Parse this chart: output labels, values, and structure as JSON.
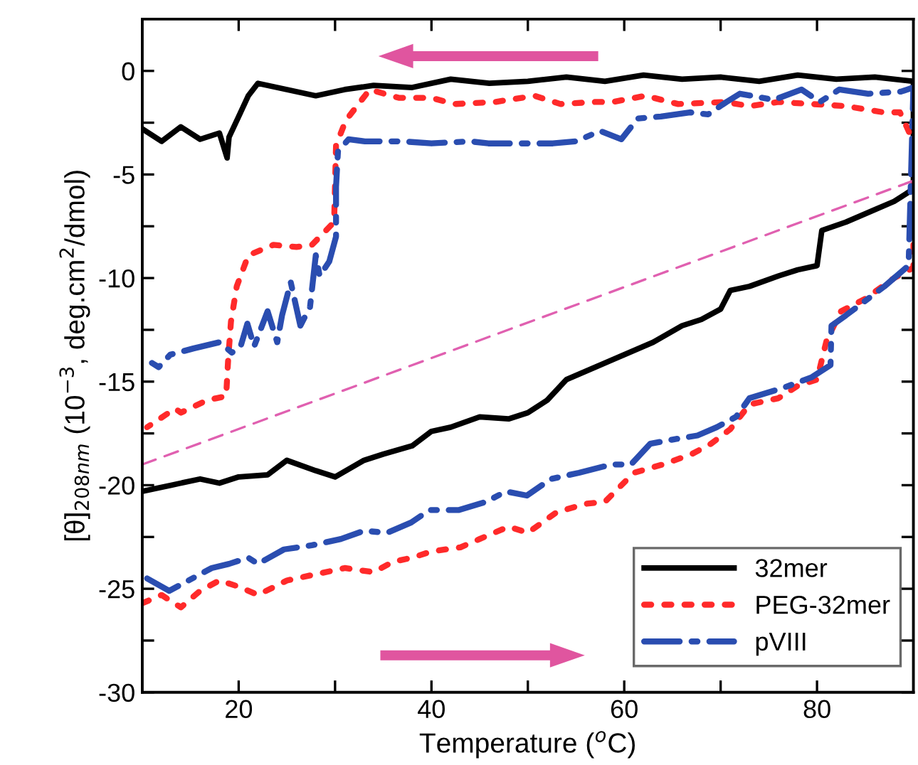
{
  "chart_data": {
    "type": "line",
    "xlabel": "Temperature ($^{o}$C)",
    "ylabel": "[θ]$_{208nm}$ (10$^{−3}$, deg.cm$^{2}$/dmol)",
    "xlim": [
      10,
      90
    ],
    "ylim": [
      -30,
      2.5
    ],
    "xticks": [
      20,
      {
        "value": 30,
        "label": null
      },
      40,
      {
        "value": 50,
        "label": null
      },
      60,
      {
        "value": 70,
        "label": null
      },
      80
    ],
    "yticks": [
      -30,
      {
        "value": -27.5,
        "label": null
      },
      -25,
      {
        "value": -22.5,
        "label": null
      },
      -20,
      {
        "value": -17.5,
        "label": null
      },
      -15,
      {
        "value": -12.5,
        "label": null
      },
      -10,
      {
        "value": -7.5,
        "label": null
      },
      -5,
      {
        "value": -2.5,
        "label": null
      },
      0
    ],
    "grid": false,
    "legend": "bottom right",
    "marker": "none",
    "series": [
      {
        "name": "32mer",
        "color": "#000000",
        "line_style": "solid",
        "x": [
          10,
          13,
          16,
          18,
          20,
          23,
          25,
          28,
          30,
          33,
          35,
          38,
          40,
          42,
          45,
          48,
          50,
          52,
          54,
          57,
          60,
          63,
          66,
          68,
          70,
          71,
          73,
          76,
          78,
          80,
          80.5,
          83,
          86,
          88,
          90,
          90,
          86,
          82,
          78,
          74,
          70,
          66,
          62,
          58,
          54,
          50,
          46,
          42,
          38,
          34,
          31,
          28,
          25,
          22,
          21,
          20,
          19,
          18.8,
          18,
          16,
          14,
          12,
          10
        ],
        "values": [
          -20.3,
          -20.0,
          -19.7,
          -19.9,
          -19.6,
          -19.5,
          -18.8,
          -19.3,
          -19.6,
          -18.8,
          -18.5,
          -18.1,
          -17.4,
          -17.2,
          -16.7,
          -16.8,
          -16.5,
          -15.9,
          -14.9,
          -14.3,
          -13.7,
          -13.1,
          -12.3,
          -12.0,
          -11.5,
          -10.6,
          -10.4,
          -9.9,
          -9.6,
          -9.4,
          -7.7,
          -7.3,
          -6.7,
          -6.3,
          -5.7,
          -0.5,
          -0.3,
          -0.4,
          -0.2,
          -0.5,
          -0.3,
          -0.4,
          -0.2,
          -0.5,
          -0.3,
          -0.5,
          -0.6,
          -0.4,
          -0.8,
          -0.7,
          -0.9,
          -1.2,
          -0.9,
          -0.6,
          -1.2,
          -2.2,
          -3.2,
          -4.2,
          -3.0,
          -3.3,
          -2.7,
          -3.4,
          -2.8
        ]
      },
      {
        "name": "PEG-32mer",
        "color": "#ff2a2a",
        "line_style": "dotted",
        "x": [
          10,
          12,
          14,
          16,
          18,
          20,
          22,
          25,
          28,
          31,
          34,
          36,
          38,
          40,
          43,
          45,
          48,
          50,
          53,
          56,
          58,
          61,
          64,
          67,
          69,
          71,
          73,
          76,
          78,
          80,
          81,
          82.5,
          85,
          88,
          90,
          90,
          88.6,
          86.9,
          83,
          76,
          73,
          70.5,
          65.6,
          62.2,
          58.8,
          56.9,
          53.4,
          50.7,
          46.6,
          42.4,
          40,
          36.6,
          33.6,
          31.1,
          30.1,
          29.9,
          27.6,
          26,
          23.6,
          21,
          19.8,
          19.2,
          18.9,
          18.7,
          17.7,
          16.7,
          14,
          13.4,
          10.5
        ],
        "values": [
          -25.7,
          -25.3,
          -25.9,
          -25.1,
          -24.6,
          -24.9,
          -25.3,
          -24.6,
          -24.3,
          -24.0,
          -24.2,
          -23.7,
          -23.5,
          -23.2,
          -23.0,
          -22.6,
          -22.0,
          -22.3,
          -21.3,
          -20.9,
          -20.8,
          -19.4,
          -19.0,
          -18.5,
          -18.0,
          -17.3,
          -16.1,
          -15.8,
          -15.2,
          -14.9,
          -13.0,
          -11.6,
          -11.0,
          -10.0,
          -9.5,
          -3.4,
          -2.0,
          -2.0,
          -1.7,
          -1.5,
          -1.7,
          -1.5,
          -1.6,
          -1.2,
          -1.5,
          -1.5,
          -1.6,
          -1.2,
          -1.5,
          -1.6,
          -1.3,
          -1.3,
          -0.9,
          -2.4,
          -3.6,
          -7.3,
          -8.4,
          -8.5,
          -8.4,
          -8.9,
          -10.4,
          -12.1,
          -14.0,
          -15.7,
          -15.8,
          -15.9,
          -16.5,
          -16.3,
          -17.2
        ]
      },
      {
        "name": "pVIII",
        "color": "#2a4db0",
        "line_style": "dashdot",
        "x": [
          10.5,
          12.8,
          14.8,
          17.2,
          19,
          21,
          22,
          24.7,
          27.6,
          30.6,
          33,
          35.4,
          37.9,
          39.8,
          42.8,
          45.7,
          47.7,
          49.9,
          52.4,
          55.3,
          58.7,
          60.7,
          62.7,
          65,
          67.6,
          69.6,
          71.6,
          73,
          76.5,
          79.4,
          81.4,
          81.5,
          83,
          87,
          89.5,
          90,
          88.7,
          85.3,
          82.3,
          80.3,
          78.4,
          75.5,
          72,
          70.6,
          68.7,
          66.8,
          63.8,
          61.4,
          59.7,
          57.5,
          55,
          52.6,
          49.7,
          45.9,
          44,
          40,
          37,
          33.1,
          31.4,
          30.3,
          30.1,
          30.1,
          29.4,
          28.4,
          28,
          27.4,
          26.4,
          25.4,
          24.5,
          24,
          23,
          21.6,
          20.9,
          20.2,
          19.3,
          18,
          15.3,
          12.9,
          11.7,
          11
        ],
        "values": [
          -24.5,
          -25.1,
          -24.6,
          -24.0,
          -23.8,
          -23.5,
          -23.8,
          -23.1,
          -22.9,
          -22.6,
          -22.2,
          -22.3,
          -21.8,
          -21.2,
          -21.2,
          -20.8,
          -20.3,
          -20.5,
          -19.7,
          -19.4,
          -19.0,
          -19.0,
          -18.0,
          -17.8,
          -17.6,
          -17.2,
          -16.7,
          -15.8,
          -15.3,
          -14.8,
          -14.2,
          -12.3,
          -11.8,
          -10.4,
          -9.4,
          -0.8,
          -1.0,
          -1.1,
          -0.9,
          -1.5,
          -0.9,
          -1.4,
          -1.1,
          -1.5,
          -2.1,
          -2.0,
          -2.2,
          -2.3,
          -3.3,
          -2.9,
          -3.4,
          -3.5,
          -3.5,
          -3.5,
          -3.4,
          -3.5,
          -3.4,
          -3.4,
          -3.3,
          -3.9,
          -5.6,
          -8.0,
          -9.2,
          -9.9,
          -8.9,
          -11.4,
          -12.3,
          -10.2,
          -11.8,
          -13.1,
          -11.6,
          -13.3,
          -12.2,
          -13.3,
          -13.6,
          -13.1,
          -13.4,
          -13.7,
          -14.3,
          -14.1
        ]
      },
      {
        "color": "#e060b0",
        "line_style": "dashed",
        "x": [
          10,
          90
        ],
        "values": [
          -19.0,
          -5.3
        ]
      }
    ]
  }
}
